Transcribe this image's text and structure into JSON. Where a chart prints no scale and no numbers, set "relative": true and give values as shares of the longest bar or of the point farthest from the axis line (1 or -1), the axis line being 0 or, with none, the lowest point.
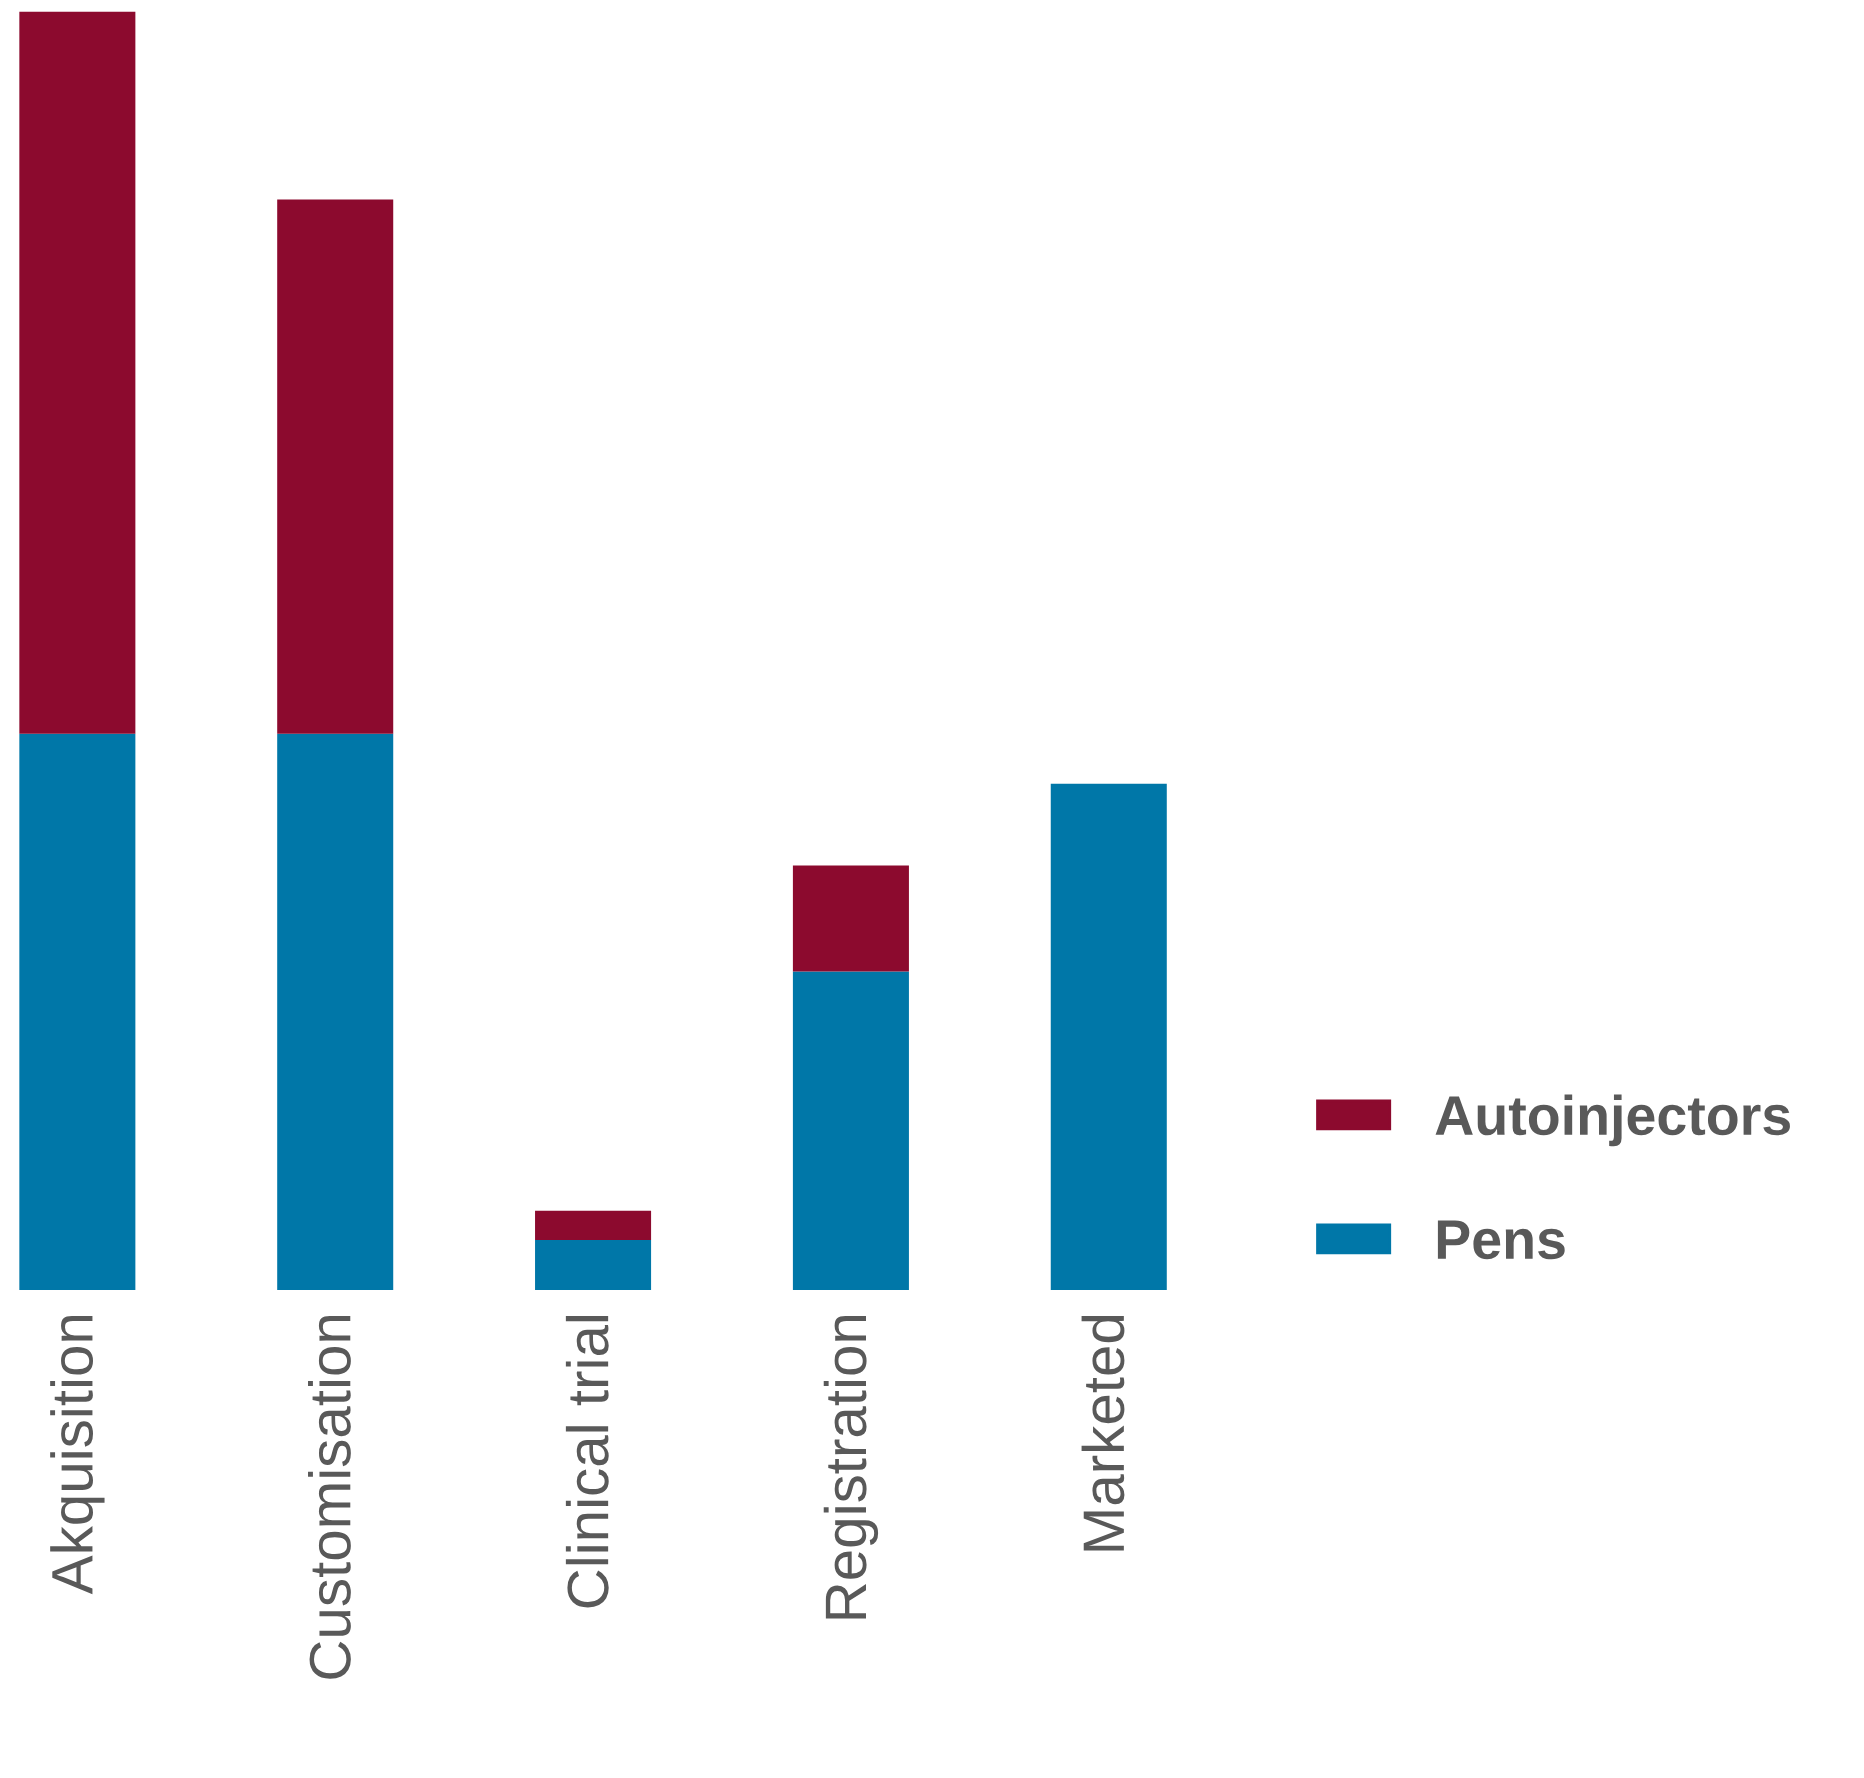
{
  "chart_data": {
    "type": "bar",
    "stacked": true,
    "relative": true,
    "legend": "right",
    "categories": [
      "Akquisition",
      "Customisation",
      "Clinical trial",
      "Registration",
      "Marketed"
    ],
    "series": [
      {
        "name": "Pens",
        "color": "#0077a8",
        "values": [
          0.435,
          0.435,
          0.039,
          0.249,
          0.396
        ]
      },
      {
        "name": "Autoinjectors",
        "color": "#8c0a2e",
        "values": [
          0.565,
          0.418,
          0.023,
          0.083,
          null
        ]
      }
    ]
  }
}
